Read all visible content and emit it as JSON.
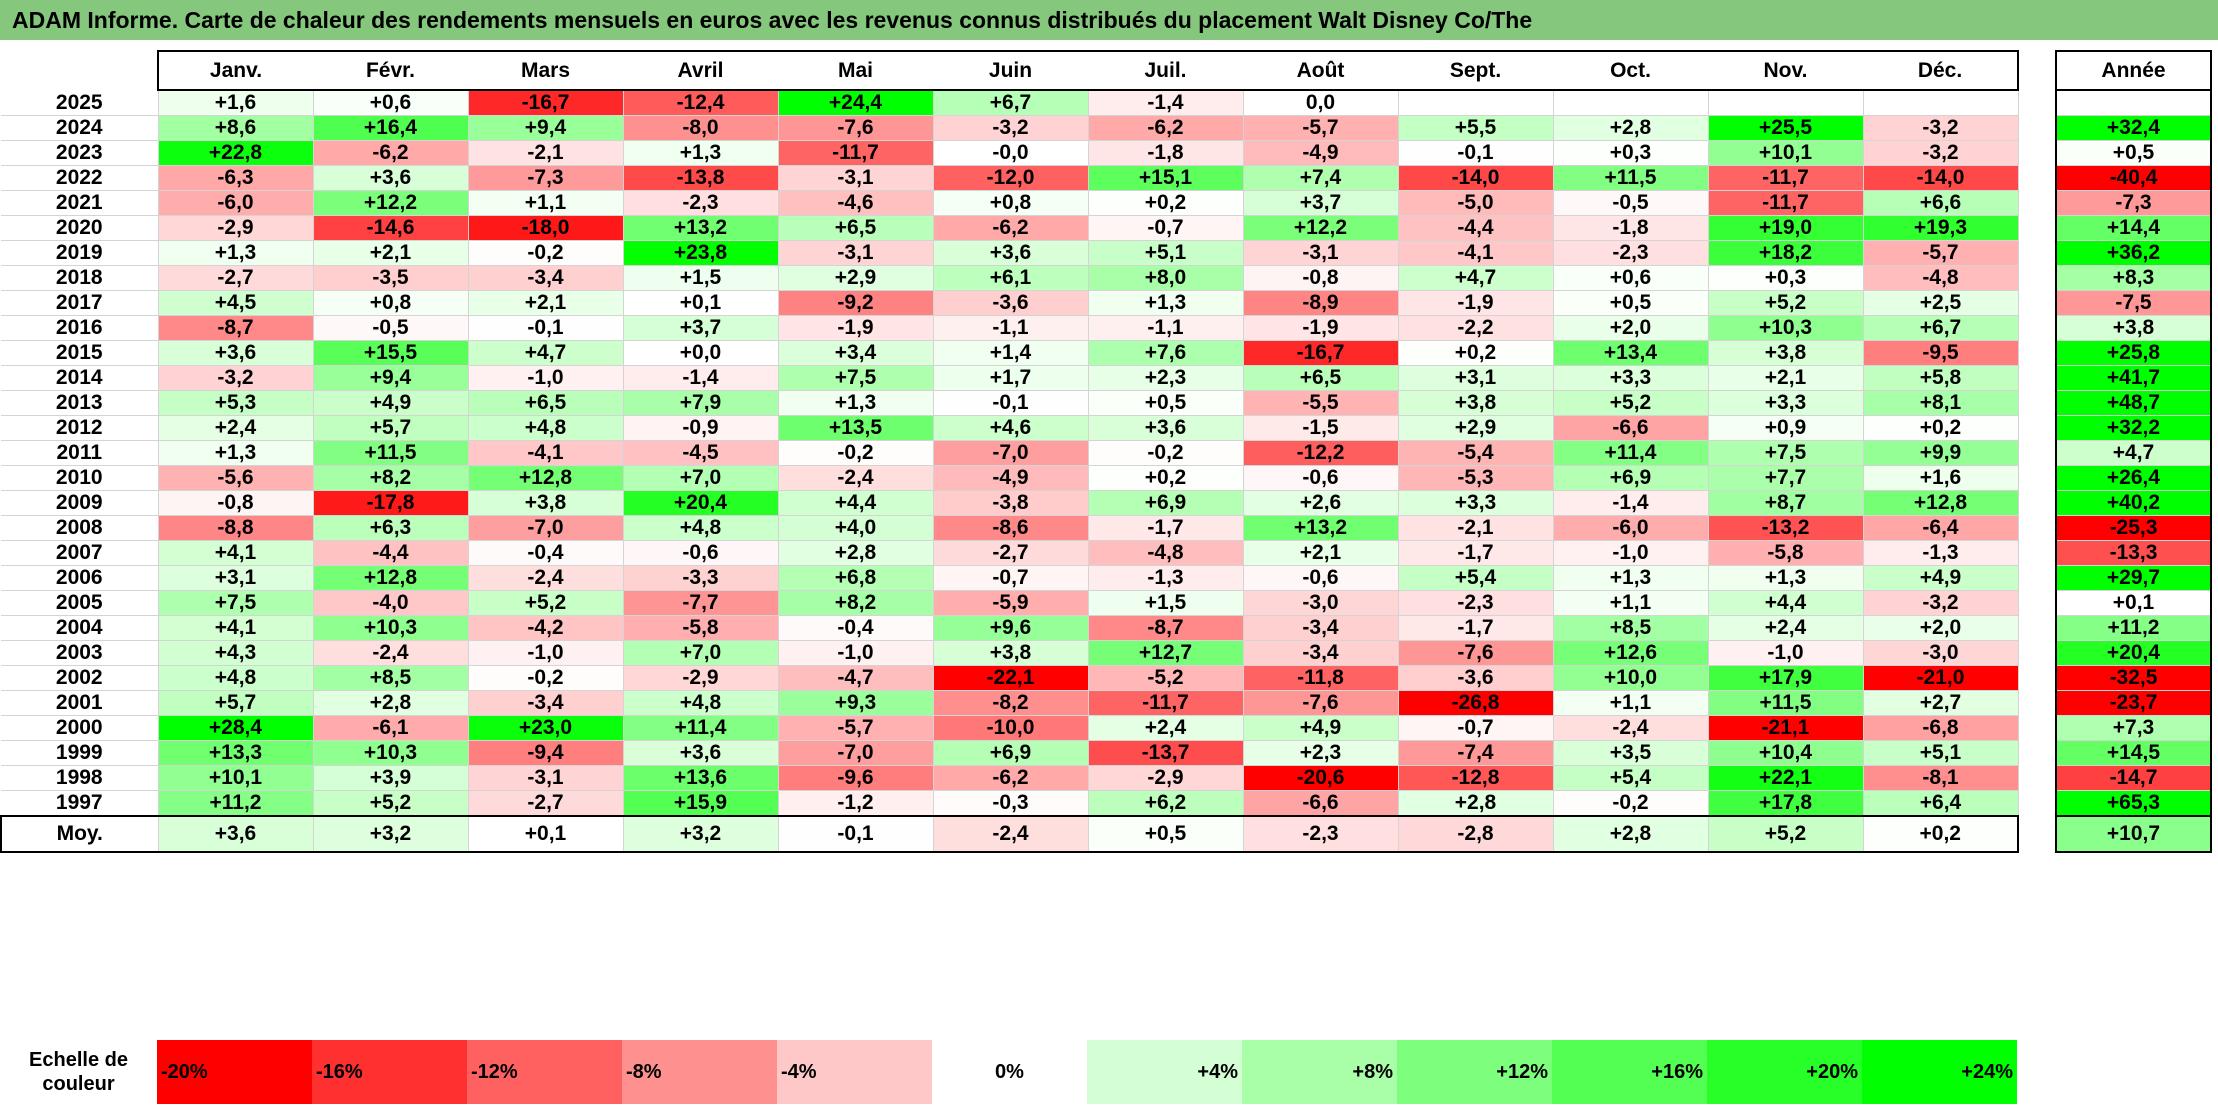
{
  "title": "ADAM Informe. Carte de chaleur des rendements mensuels en euros avec les revenus connus distribués du placement Walt Disney Co/The",
  "chart_data": {
    "type": "heatmap",
    "months": [
      "Janv.",
      "Févr.",
      "Mars",
      "Avril",
      "Mai",
      "Juin",
      "Juil.",
      "Août",
      "Sept.",
      "Oct.",
      "Nov.",
      "Déc."
    ],
    "year_header": "Année",
    "rows": [
      {
        "year": "2025",
        "values": [
          "+1,6",
          "+0,6",
          "-16,7",
          "-12,4",
          "+24,4",
          "+6,7",
          "-1,4",
          "0,0",
          "",
          "",
          "",
          ""
        ],
        "annual": ""
      },
      {
        "year": "2024",
        "values": [
          "+8,6",
          "+16,4",
          "+9,4",
          "-8,0",
          "-7,6",
          "-3,2",
          "-6,2",
          "-5,7",
          "+5,5",
          "+2,8",
          "+25,5",
          "-3,2"
        ],
        "annual": "+32,4"
      },
      {
        "year": "2023",
        "values": [
          "+22,8",
          "-6,2",
          "-2,1",
          "+1,3",
          "-11,7",
          "-0,0",
          "-1,8",
          "-4,9",
          "-0,1",
          "+0,3",
          "+10,1",
          "-3,2"
        ],
        "annual": "+0,5"
      },
      {
        "year": "2022",
        "values": [
          "-6,3",
          "+3,6",
          "-7,3",
          "-13,8",
          "-3,1",
          "-12,0",
          "+15,1",
          "+7,4",
          "-14,0",
          "+11,5",
          "-11,7",
          "-14,0"
        ],
        "annual": "-40,4"
      },
      {
        "year": "2021",
        "values": [
          "-6,0",
          "+12,2",
          "+1,1",
          "-2,3",
          "-4,6",
          "+0,8",
          "+0,2",
          "+3,7",
          "-5,0",
          "-0,5",
          "-11,7",
          "+6,6"
        ],
        "annual": "-7,3"
      },
      {
        "year": "2020",
        "values": [
          "-2,9",
          "-14,6",
          "-18,0",
          "+13,2",
          "+6,5",
          "-6,2",
          "-0,7",
          "+12,2",
          "-4,4",
          "-1,8",
          "+19,0",
          "+19,3"
        ],
        "annual": "+14,4"
      },
      {
        "year": "2019",
        "values": [
          "+1,3",
          "+2,1",
          "-0,2",
          "+23,8",
          "-3,1",
          "+3,6",
          "+5,1",
          "-3,1",
          "-4,1",
          "-2,3",
          "+18,2",
          "-5,7"
        ],
        "annual": "+36,2"
      },
      {
        "year": "2018",
        "values": [
          "-2,7",
          "-3,5",
          "-3,4",
          "+1,5",
          "+2,9",
          "+6,1",
          "+8,0",
          "-0,8",
          "+4,7",
          "+0,6",
          "+0,3",
          "-4,8"
        ],
        "annual": "+8,3"
      },
      {
        "year": "2017",
        "values": [
          "+4,5",
          "+0,8",
          "+2,1",
          "+0,1",
          "-9,2",
          "-3,6",
          "+1,3",
          "-8,9",
          "-1,9",
          "+0,5",
          "+5,2",
          "+2,5"
        ],
        "annual": "-7,5"
      },
      {
        "year": "2016",
        "values": [
          "-8,7",
          "-0,5",
          "-0,1",
          "+3,7",
          "-1,9",
          "-1,1",
          "-1,1",
          "-1,9",
          "-2,2",
          "+2,0",
          "+10,3",
          "+6,7"
        ],
        "annual": "+3,8"
      },
      {
        "year": "2015",
        "values": [
          "+3,6",
          "+15,5",
          "+4,7",
          "+0,0",
          "+3,4",
          "+1,4",
          "+7,6",
          "-16,7",
          "+0,2",
          "+13,4",
          "+3,8",
          "-9,5"
        ],
        "annual": "+25,8"
      },
      {
        "year": "2014",
        "values": [
          "-3,2",
          "+9,4",
          "-1,0",
          "-1,4",
          "+7,5",
          "+1,7",
          "+2,3",
          "+6,5",
          "+3,1",
          "+3,3",
          "+2,1",
          "+5,8"
        ],
        "annual": "+41,7"
      },
      {
        "year": "2013",
        "values": [
          "+5,3",
          "+4,9",
          "+6,5",
          "+7,9",
          "+1,3",
          "-0,1",
          "+0,5",
          "-5,5",
          "+3,8",
          "+5,2",
          "+3,3",
          "+8,1"
        ],
        "annual": "+48,7"
      },
      {
        "year": "2012",
        "values": [
          "+2,4",
          "+5,7",
          "+4,8",
          "-0,9",
          "+13,5",
          "+4,6",
          "+3,6",
          "-1,5",
          "+2,9",
          "-6,6",
          "+0,9",
          "+0,2"
        ],
        "annual": "+32,2"
      },
      {
        "year": "2011",
        "values": [
          "+1,3",
          "+11,5",
          "-4,1",
          "-4,5",
          "-0,2",
          "-7,0",
          "-0,2",
          "-12,2",
          "-5,4",
          "+11,4",
          "+7,5",
          "+9,9"
        ],
        "annual": "+4,7"
      },
      {
        "year": "2010",
        "values": [
          "-5,6",
          "+8,2",
          "+12,8",
          "+7,0",
          "-2,4",
          "-4,9",
          "+0,2",
          "-0,6",
          "-5,3",
          "+6,9",
          "+7,7",
          "+1,6"
        ],
        "annual": "+26,4"
      },
      {
        "year": "2009",
        "values": [
          "-0,8",
          "-17,8",
          "+3,8",
          "+20,4",
          "+4,4",
          "-3,8",
          "+6,9",
          "+2,6",
          "+3,3",
          "-1,4",
          "+8,7",
          "+12,8"
        ],
        "annual": "+40,2"
      },
      {
        "year": "2008",
        "values": [
          "-8,8",
          "+6,3",
          "-7,0",
          "+4,8",
          "+4,0",
          "-8,6",
          "-1,7",
          "+13,2",
          "-2,1",
          "-6,0",
          "-13,2",
          "-6,4"
        ],
        "annual": "-25,3"
      },
      {
        "year": "2007",
        "values": [
          "+4,1",
          "-4,4",
          "-0,4",
          "-0,6",
          "+2,8",
          "-2,7",
          "-4,8",
          "+2,1",
          "-1,7",
          "-1,0",
          "-5,8",
          "-1,3"
        ],
        "annual": "-13,3"
      },
      {
        "year": "2006",
        "values": [
          "+3,1",
          "+12,8",
          "-2,4",
          "-3,3",
          "+6,8",
          "-0,7",
          "-1,3",
          "-0,6",
          "+5,4",
          "+1,3",
          "+1,3",
          "+4,9"
        ],
        "annual": "+29,7"
      },
      {
        "year": "2005",
        "values": [
          "+7,5",
          "-4,0",
          "+5,2",
          "-7,7",
          "+8,2",
          "-5,9",
          "+1,5",
          "-3,0",
          "-2,3",
          "+1,1",
          "+4,4",
          "-3,2"
        ],
        "annual": "+0,1"
      },
      {
        "year": "2004",
        "values": [
          "+4,1",
          "+10,3",
          "-4,2",
          "-5,8",
          "-0,4",
          "+9,6",
          "-8,7",
          "-3,4",
          "-1,7",
          "+8,5",
          "+2,4",
          "+2,0"
        ],
        "annual": "+11,2"
      },
      {
        "year": "2003",
        "values": [
          "+4,3",
          "-2,4",
          "-1,0",
          "+7,0",
          "-1,0",
          "+3,8",
          "+12,7",
          "-3,4",
          "-7,6",
          "+12,6",
          "-1,0",
          "-3,0"
        ],
        "annual": "+20,4"
      },
      {
        "year": "2002",
        "values": [
          "+4,8",
          "+8,5",
          "-0,2",
          "-2,9",
          "-4,7",
          "-22,1",
          "-5,2",
          "-11,8",
          "-3,6",
          "+10,0",
          "+17,9",
          "-21,0"
        ],
        "annual": "-32,5"
      },
      {
        "year": "2001",
        "values": [
          "+5,7",
          "+2,8",
          "-3,4",
          "+4,8",
          "+9,3",
          "-8,2",
          "-11,7",
          "-7,6",
          "-26,8",
          "+1,1",
          "+11,5",
          "+2,7"
        ],
        "annual": "-23,7"
      },
      {
        "year": "2000",
        "values": [
          "+28,4",
          "-6,1",
          "+23,0",
          "+11,4",
          "-5,7",
          "-10,0",
          "+2,4",
          "+4,9",
          "-0,7",
          "-2,4",
          "-21,1",
          "-6,8"
        ],
        "annual": "+7,3"
      },
      {
        "year": "1999",
        "values": [
          "+13,3",
          "+10,3",
          "-9,4",
          "+3,6",
          "-7,0",
          "+6,9",
          "-13,7",
          "+2,3",
          "-7,4",
          "+3,5",
          "+10,4",
          "+5,1"
        ],
        "annual": "+14,5"
      },
      {
        "year": "1998",
        "values": [
          "+10,1",
          "+3,9",
          "-3,1",
          "+13,6",
          "-9,6",
          "-6,2",
          "-2,9",
          "-20,6",
          "-12,8",
          "+5,4",
          "+22,1",
          "-8,1"
        ],
        "annual": "-14,7"
      },
      {
        "year": "1997",
        "values": [
          "+11,2",
          "+5,2",
          "-2,7",
          "+15,9",
          "-1,2",
          "-0,3",
          "+6,2",
          "-6,6",
          "+2,8",
          "-0,2",
          "+17,8",
          "+6,4"
        ],
        "annual": "+65,3"
      }
    ],
    "average": {
      "label": "Moy.",
      "values": [
        "+3,6",
        "+3,2",
        "+0,1",
        "+3,2",
        "-0,1",
        "-2,4",
        "+0,5",
        "-2,3",
        "-2,8",
        "+2,8",
        "+5,2",
        "+0,2"
      ],
      "annual": "+10,7"
    },
    "color_scale": {
      "label": "Echelle de couleur",
      "stops": [
        {
          "label": "-20%",
          "value": -20,
          "color": "#ff0000"
        },
        {
          "label": "-16%",
          "value": -16,
          "color": "#ff3030"
        },
        {
          "label": "-12%",
          "value": -12,
          "color": "#ff6060"
        },
        {
          "label": "-8%",
          "value": -8,
          "color": "#ff9090"
        },
        {
          "label": "-4%",
          "value": -4,
          "color": "#ffc8c8"
        },
        {
          "label": "0%",
          "value": 0,
          "color": "#ffffff"
        },
        {
          "label": "+4%",
          "value": 4,
          "color": "#d4ffd4"
        },
        {
          "label": "+8%",
          "value": 8,
          "color": "#a8ffa8"
        },
        {
          "label": "+12%",
          "value": 12,
          "color": "#7dff7d"
        },
        {
          "label": "+16%",
          "value": 16,
          "color": "#53ff53"
        },
        {
          "label": "+20%",
          "value": 20,
          "color": "#28ff28"
        },
        {
          "label": "+24%",
          "value": 24,
          "color": "#00ff00"
        }
      ]
    },
    "colors": {
      "title_bar": "#84c77d",
      "negative": "#ff0000",
      "positive": "#00ff00",
      "neutral": "#ffffff"
    }
  }
}
